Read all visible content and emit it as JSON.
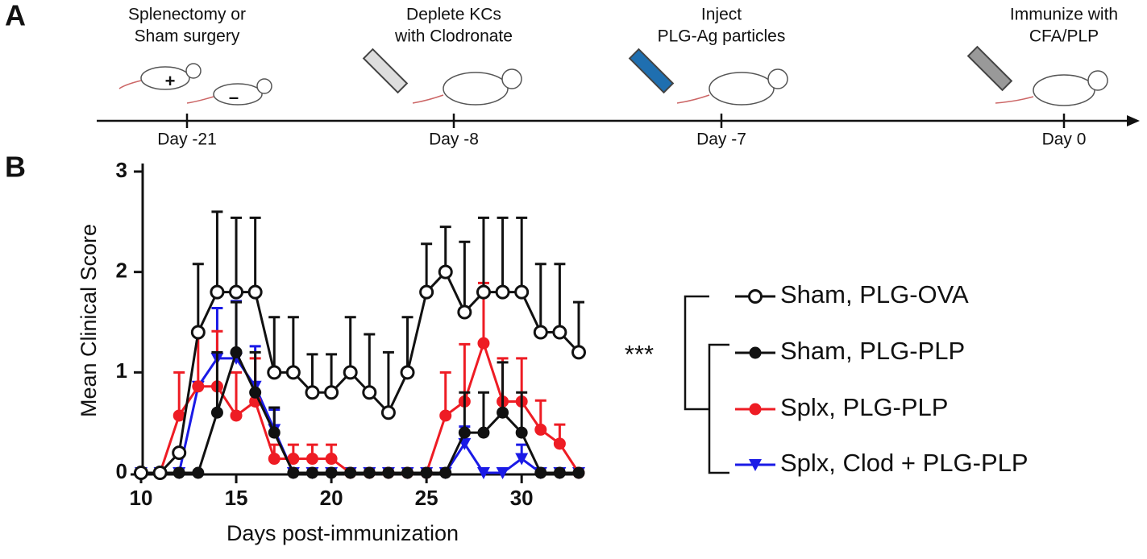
{
  "panel_labels": [
    "A",
    "B"
  ],
  "timeline": {
    "events": [
      {
        "text": [
          "Splenectomy or",
          "Sham surgery"
        ],
        "day": "Day -21"
      },
      {
        "text": [
          "Deplete KCs",
          "with Clodronate"
        ],
        "day": "Day -8"
      },
      {
        "text": [
          "Inject",
          "PLG-Ag particles"
        ],
        "day": "Day -7"
      },
      {
        "text": [
          "Immunize with",
          "CFA/PLP"
        ],
        "day": "Day 0"
      }
    ],
    "mouse_signs": [
      "+",
      "–"
    ]
  },
  "chart_data": {
    "type": "line",
    "xlabel": "Days post-immunization",
    "ylabel": "Mean Clinical Score",
    "annotation": "***",
    "x": [
      10,
      11,
      12,
      13,
      14,
      15,
      16,
      17,
      18,
      19,
      20,
      21,
      22,
      23,
      24,
      25,
      26,
      27,
      28,
      29,
      30,
      31,
      32,
      33
    ],
    "xlim": [
      10,
      33
    ],
    "xticks": [
      10,
      15,
      20,
      25,
      30
    ],
    "ylim": [
      0,
      3
    ],
    "yticks": [
      0,
      1,
      2,
      3
    ],
    "series": [
      {
        "name": "Splx, Clod + PLG-PLP",
        "color": "#1a1ae6",
        "marker": "triangle-down",
        "values": [
          0,
          0,
          0,
          0.86,
          1.14,
          1.14,
          0.86,
          0.43,
          0,
          0,
          0,
          0,
          0,
          0,
          0,
          0,
          0,
          0.29,
          0,
          0,
          0.14,
          0,
          0,
          0
        ],
        "errors": [
          0,
          0,
          0,
          0,
          0.5,
          0.57,
          0.4,
          0.2,
          0,
          0,
          0,
          0,
          0,
          0,
          0,
          0,
          0,
          0.17,
          0,
          0,
          0.14,
          0,
          0,
          0
        ]
      },
      {
        "name": "Splx, PLG-PLP",
        "color": "#ee1c24",
        "marker": "circle",
        "values": [
          0,
          0,
          0.57,
          0.86,
          0.86,
          0.57,
          0.71,
          0.14,
          0.14,
          0.14,
          0.14,
          0,
          0,
          0,
          0,
          0,
          0.57,
          0.71,
          1.29,
          0.71,
          0.71,
          0.43,
          0.29,
          0
        ],
        "errors": [
          0,
          0,
          0.43,
          0.55,
          0.55,
          0.43,
          0.43,
          0.14,
          0.14,
          0.14,
          0.14,
          0,
          0,
          0,
          0,
          0,
          0.43,
          0.57,
          0.6,
          0.43,
          0.43,
          0.29,
          0.19,
          0
        ]
      },
      {
        "name": "Sham, PLG-PLP",
        "color": "#111111",
        "marker": "circle",
        "values": [
          0,
          0,
          0,
          0,
          0.6,
          1.2,
          0.8,
          0.4,
          0,
          0,
          0,
          0,
          0,
          0,
          0,
          0,
          0,
          0.4,
          0.4,
          0.6,
          0.4,
          0,
          0,
          0
        ],
        "errors": [
          0,
          0,
          0,
          0,
          0.6,
          0.5,
          0.4,
          0.25,
          0,
          0,
          0,
          0,
          0,
          0,
          0,
          0,
          0,
          0.4,
          0.4,
          0.5,
          0.4,
          0,
          0,
          0
        ]
      },
      {
        "name": "Sham, PLG-OVA",
        "color": "#111111",
        "marker": "open-circle",
        "values": [
          0,
          0,
          0.2,
          1.4,
          1.8,
          1.8,
          1.8,
          1.0,
          1.0,
          0.8,
          0.8,
          1.0,
          0.8,
          0.6,
          1.0,
          1.8,
          2.0,
          1.6,
          1.8,
          1.8,
          1.8,
          1.4,
          1.4,
          1.2
        ],
        "errors": [
          0,
          0,
          0,
          0.68,
          0.8,
          0.74,
          0.74,
          0.55,
          0.55,
          0.38,
          0.38,
          0.55,
          0.58,
          0.6,
          0.55,
          0.48,
          0.45,
          0.7,
          0.74,
          0.74,
          0.74,
          0.68,
          0.68,
          0.5
        ]
      }
    ],
    "legend_order": [
      3,
      2,
      1,
      0
    ]
  }
}
